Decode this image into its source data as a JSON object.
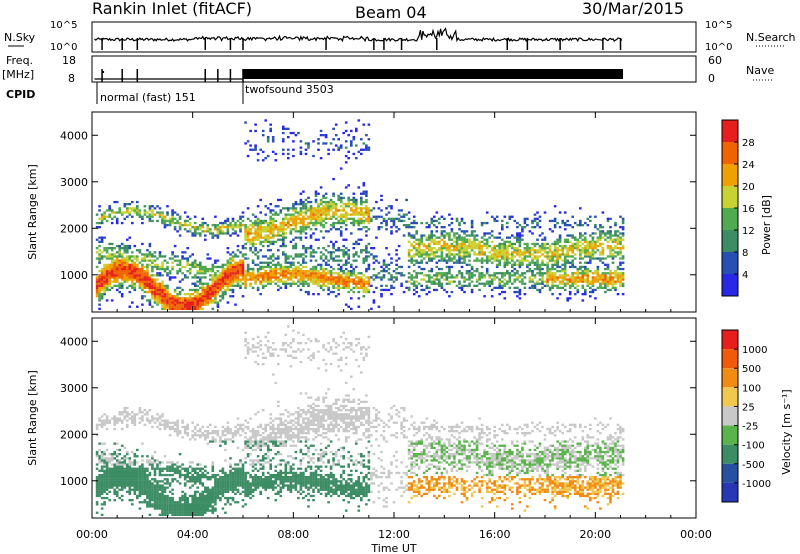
{
  "header": {
    "title": "Rankin Inlet (fitACF)",
    "beam": "Beam 04",
    "date": "30/Mar/2015"
  },
  "chart_data": [
    {
      "type": "line",
      "name": "noise-panel",
      "left_label": "N.Sky",
      "right_label": "N.Search",
      "left_ticks": [
        "10^5",
        "10^0"
      ],
      "right_ticks": [
        "10^5",
        "10^0"
      ]
    },
    {
      "type": "line",
      "name": "frequency-panel",
      "left_label_1": "Freq.",
      "left_label_2": "[MHz]",
      "right_label": "Nave",
      "left_ticks": [
        "18",
        "8"
      ],
      "right_ticks": [
        "60",
        "0"
      ]
    },
    {
      "type": "table",
      "name": "cpid-strip",
      "label": "CPID",
      "modes": [
        {
          "label": "normal (fast) 151",
          "start_hour": 0.0,
          "end_hour": 6.0
        },
        {
          "label": "twofsound 3503",
          "start_hour": 6.0,
          "end_hour": 21.1
        }
      ]
    },
    {
      "type": "heatmap",
      "name": "power",
      "ylabel": "Slant Range [km]",
      "yticks": [
        1000,
        2000,
        3000,
        4000
      ],
      "ylim": [
        200,
        4500
      ],
      "colorbar_label": "Power [dB]",
      "colorbar_ticks": [
        "28",
        "24",
        "20",
        "16",
        "12",
        "8",
        "4"
      ],
      "colors": [
        "#2828e6",
        "#2850b4",
        "#3c8c64",
        "#50aa50",
        "#c8d232",
        "#f0a000",
        "#f06400",
        "#e61e1e"
      ]
    },
    {
      "type": "heatmap",
      "name": "velocity",
      "ylabel": "Slant Range [km]",
      "yticks": [
        1000,
        2000,
        3000,
        4000
      ],
      "ylim": [
        200,
        4500
      ],
      "colorbar_label": "Velocity [m s⁻¹]",
      "colorbar_ticks": [
        "1000",
        "500",
        "100",
        "25",
        "-25",
        "-100",
        "-500",
        "-1000"
      ],
      "colors": [
        "#2838b4",
        "#2850a0",
        "#3c8c64",
        "#5ab44b",
        "#c8c8c8",
        "#f0c850",
        "#f08c14",
        "#f05a0a",
        "#e61e1e"
      ]
    }
  ],
  "xaxis": {
    "label": "Time UT",
    "ticks": [
      "00:00",
      "04:00",
      "08:00",
      "12:00",
      "16:00",
      "20:00",
      "00:00"
    ],
    "xlim": [
      0,
      24
    ]
  }
}
